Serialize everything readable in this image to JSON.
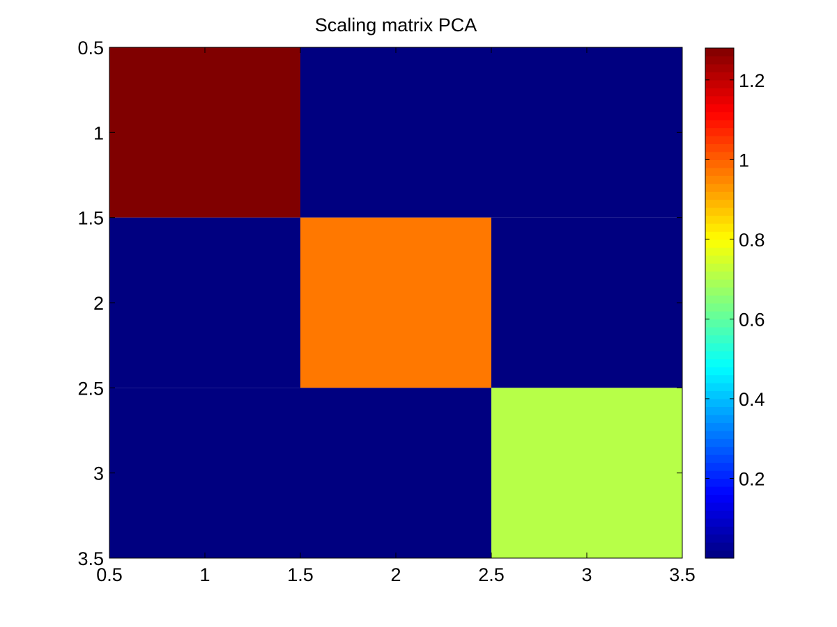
{
  "chart_data": {
    "type": "heatmap",
    "title": "Scaling matrix PCA",
    "xlabel": "",
    "ylabel": "",
    "colormap": "jet",
    "x_categories": [
      1,
      2,
      3
    ],
    "y_categories": [
      1,
      2,
      3
    ],
    "values": [
      [
        1.28,
        0,
        0
      ],
      [
        0,
        0.97,
        0
      ],
      [
        0,
        0,
        0.71
      ]
    ],
    "xlim": [
      0.5,
      3.5
    ],
    "ylim": [
      0.5,
      3.5
    ],
    "y_direction": "reversed",
    "xticks": [
      "0.5",
      "1",
      "1.5",
      "2",
      "2.5",
      "3",
      "3.5"
    ],
    "yticks": [
      "0.5",
      "1",
      "1.5",
      "2",
      "2.5",
      "3",
      "3.5"
    ],
    "colorbar": {
      "range": [
        0,
        1.28
      ],
      "ticks": [
        0.2,
        0.4,
        0.6,
        0.8,
        1,
        1.2
      ],
      "tick_labels": [
        "0.2",
        "0.4",
        "0.6",
        "0.8",
        "1",
        "1.2"
      ],
      "placement": "right"
    },
    "grid": false,
    "legend": "none"
  }
}
